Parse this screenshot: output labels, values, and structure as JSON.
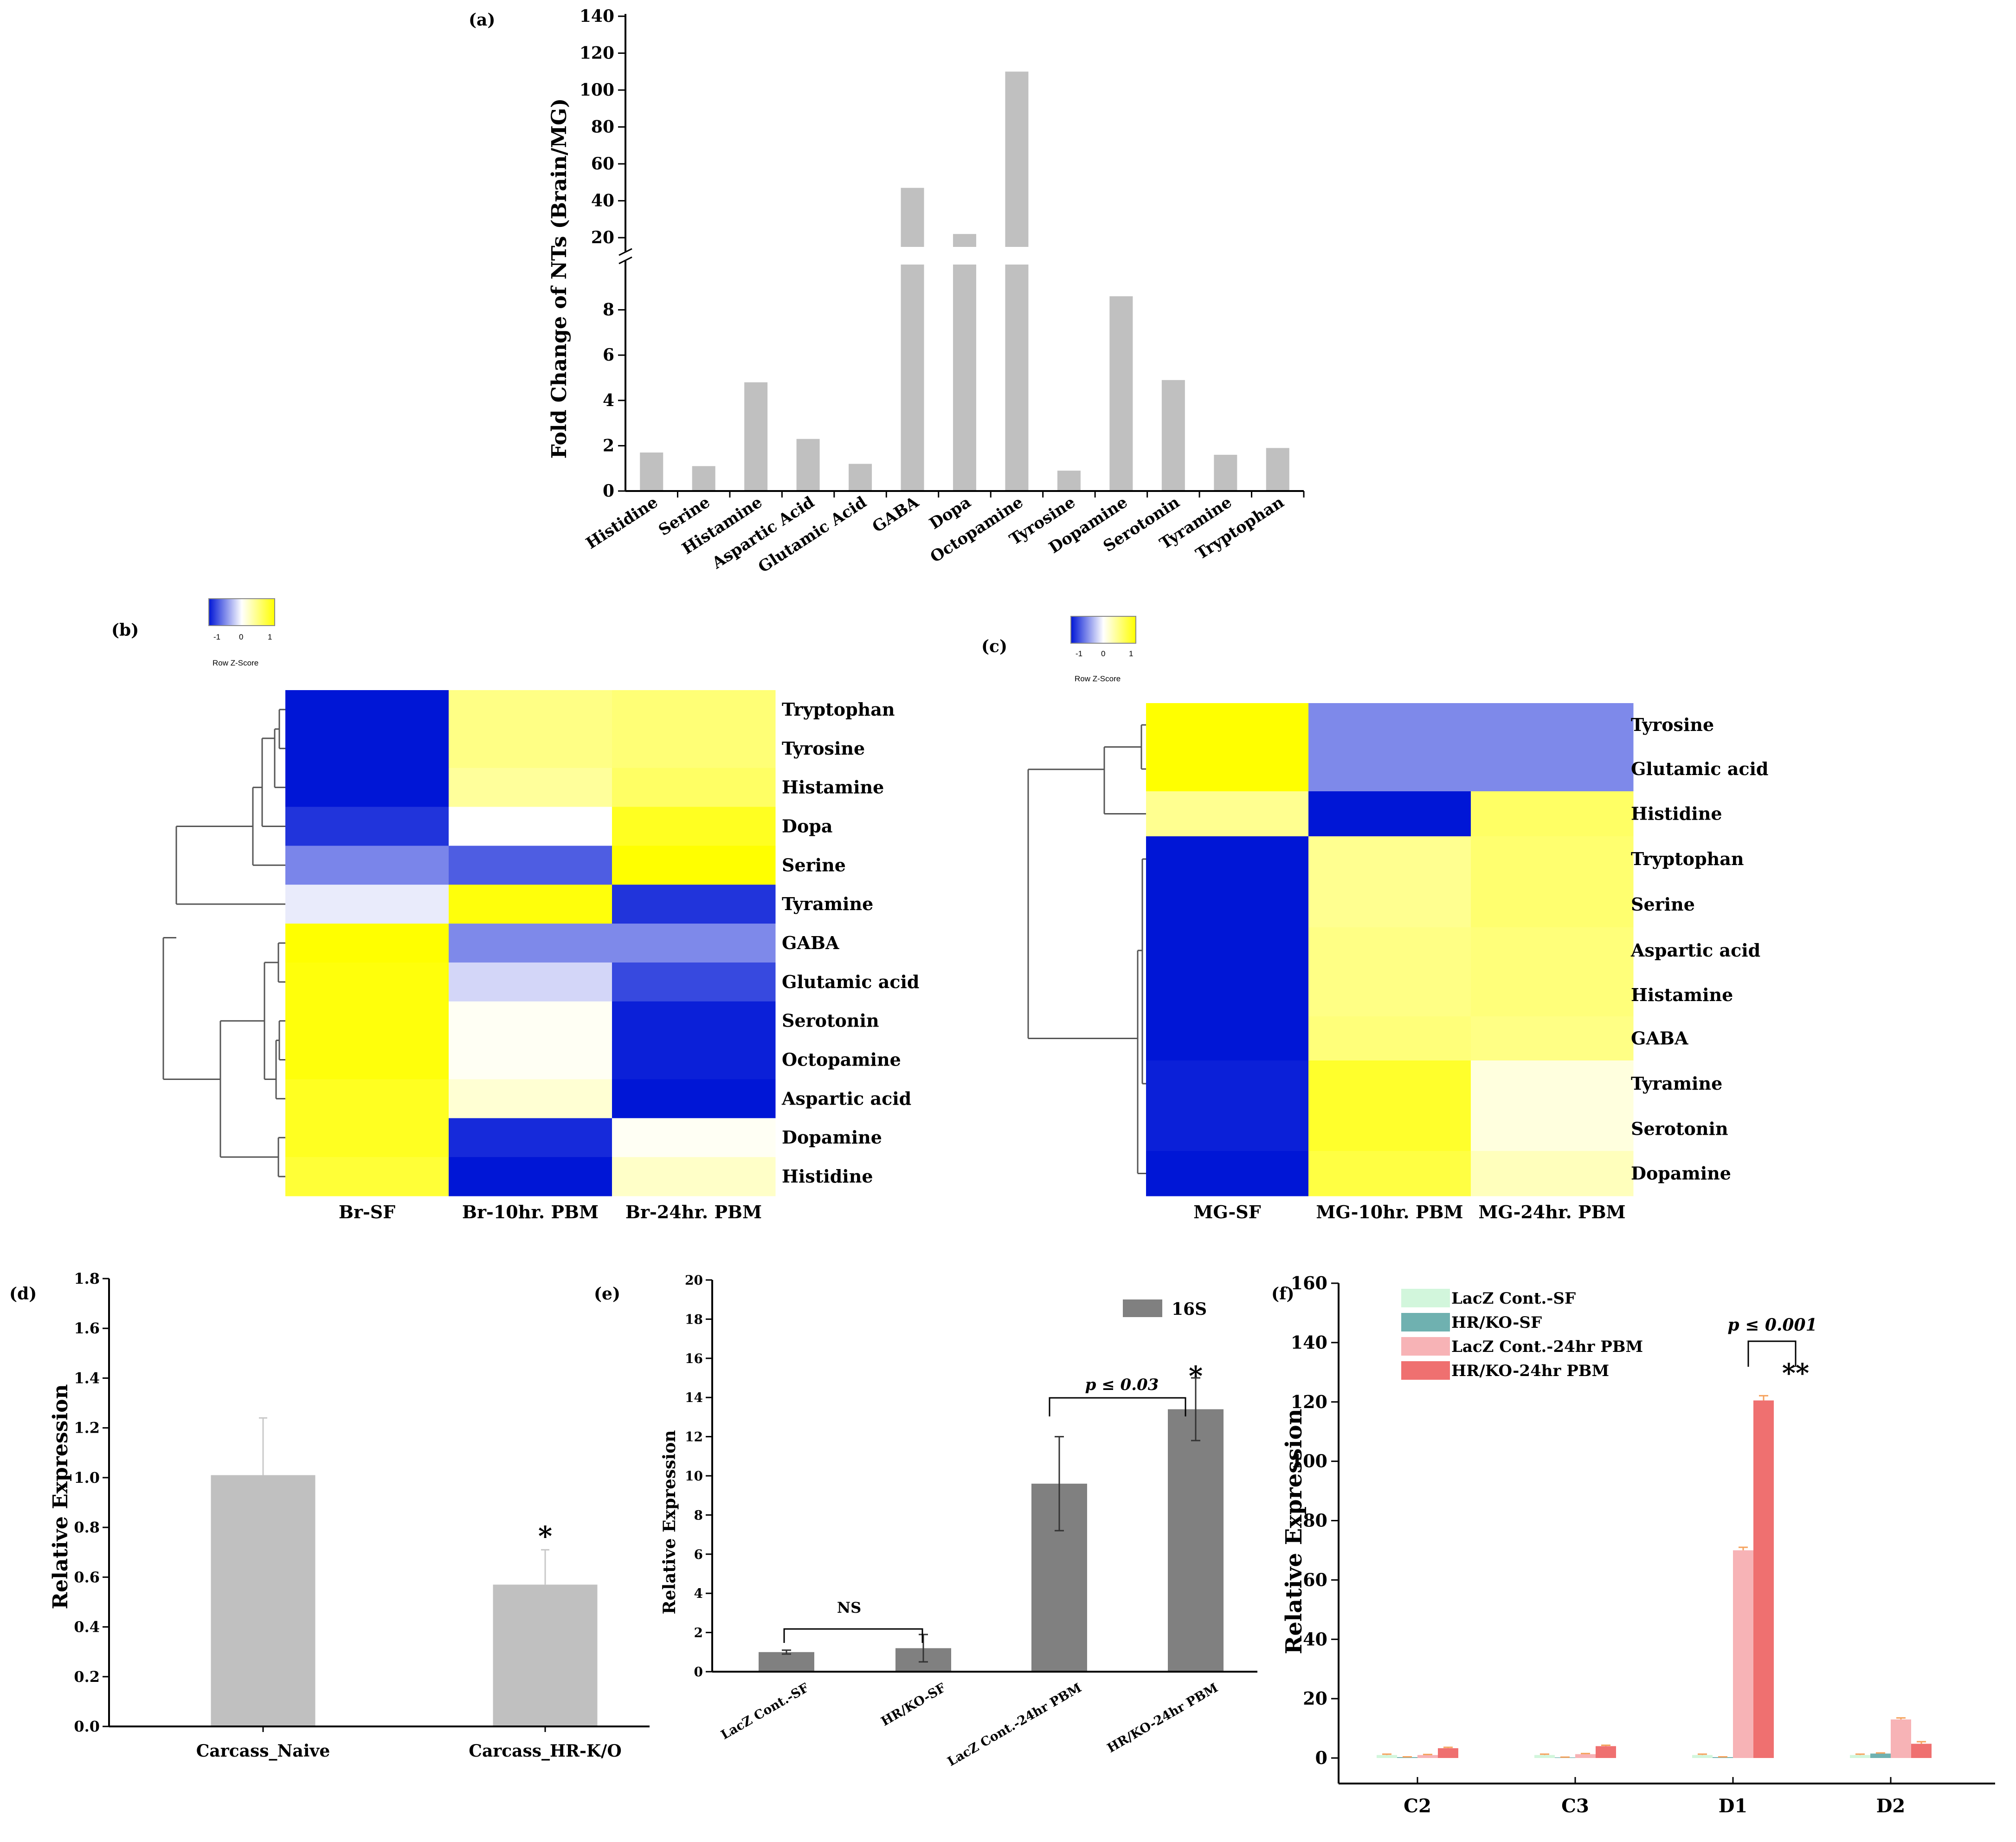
{
  "colors": {
    "bar_gray": "#c0c0c0",
    "bar_dark": "#808080",
    "heat_low": "#0016d6",
    "heat_mid": "#ffffff",
    "heat_high": "#ffff00",
    "lacz_sf": "#d2f6dc",
    "hr_sf": "#6fb1b0",
    "lacz_pbm": "#f7b3b6",
    "hr_pbm": "#ef7070",
    "err_orange": "#f5a25d"
  },
  "chart_data": [
    {
      "panel": "(a)",
      "type": "bar",
      "ylabel": "Fold Change of NTs (Brain/MG)",
      "categories": [
        "Histidine",
        "Serine",
        "Histamine",
        "Aspartic Acid",
        "Glutamic Acid",
        "GABA",
        "Dopa",
        "Octopamine",
        "Tyrosine",
        "Dopamine",
        "Serotonin",
        "Tyramine",
        "Tryptophan"
      ],
      "values": [
        1.7,
        1.1,
        4.8,
        2.3,
        1.2,
        47,
        22,
        110,
        0.9,
        8.6,
        4.9,
        1.6,
        1.9
      ],
      "axis_break": true,
      "lower_ticks": [
        0,
        2,
        4,
        6,
        8
      ],
      "upper_ticks": [
        20,
        40,
        60,
        80,
        100,
        120,
        140
      ],
      "ylim_lower": [
        0,
        10
      ],
      "ylim_upper": [
        15,
        140
      ]
    },
    {
      "panel": "(b)",
      "type": "heatmap",
      "legend_title": "Row Z-Score",
      "legend_ticks": [
        "-1",
        "0",
        "1"
      ],
      "columns": [
        "Br-SF",
        "Br-10hr. PBM",
        "Br-24hr. PBM"
      ],
      "rows": [
        "Tryptophan",
        "Tyrosine",
        "Histamine",
        "Dopa",
        "Serine",
        "Tyramine",
        "GABA",
        "Glutamic acid",
        "Serotonin",
        "Octopamine",
        "Aspartic acid",
        "Dopamine",
        "Histidine"
      ],
      "values": [
        [
          -1.15,
          0.55,
          0.62
        ],
        [
          -1.15,
          0.55,
          0.62
        ],
        [
          -1.15,
          0.45,
          0.7
        ],
        [
          -1.0,
          0.0,
          1.0
        ],
        [
          -0.6,
          -0.8,
          1.4
        ],
        [
          -0.1,
          1.1,
          -1.0
        ],
        [
          1.15,
          -0.58,
          -0.58
        ],
        [
          1.1,
          -0.2,
          -0.9
        ],
        [
          1.1,
          0.05,
          -1.1
        ],
        [
          1.1,
          0.05,
          -1.1
        ],
        [
          1.0,
          0.2,
          -1.2
        ],
        [
          1.0,
          -1.05,
          0.05
        ],
        [
          0.9,
          -1.15,
          0.25
        ]
      ]
    },
    {
      "panel": "(c)",
      "type": "heatmap",
      "legend_title": "Row Z-Score",
      "legend_ticks": [
        "-1",
        "0",
        "1"
      ],
      "columns": [
        "MG-SF",
        "MG-10hr. PBM",
        "MG-24hr. PBM"
      ],
      "rows": [
        "Tyrosine",
        "Glutamic acid",
        "Histidine",
        "Tryptophan",
        "Serine",
        "Aspartic acid",
        "Histamine",
        "GABA",
        "Tyramine",
        "Serotonin",
        "Dopamine"
      ],
      "values": [
        [
          1.15,
          -0.58,
          -0.58
        ],
        [
          1.15,
          -0.58,
          -0.58
        ],
        [
          0.5,
          -1.15,
          0.7
        ],
        [
          -1.15,
          0.5,
          0.65
        ],
        [
          -1.15,
          0.5,
          0.65
        ],
        [
          -1.15,
          0.55,
          0.6
        ],
        [
          -1.15,
          0.55,
          0.6
        ],
        [
          -1.15,
          0.6,
          0.55
        ],
        [
          -1.1,
          0.95,
          0.15
        ],
        [
          -1.1,
          0.95,
          0.15
        ],
        [
          -1.15,
          0.85,
          0.3
        ]
      ]
    },
    {
      "panel": "(d)",
      "type": "bar",
      "ylabel": "Relative Expression",
      "categories": [
        "Carcass_Naive",
        "Carcass_HR-K/O"
      ],
      "values": [
        1.01,
        0.57
      ],
      "errors": [
        0.23,
        0.14
      ],
      "ylim": [
        0,
        1.8
      ],
      "ticks": [
        "0.0",
        "0.2",
        "0.4",
        "0.6",
        "0.8",
        "1.0",
        "1.2",
        "1.4",
        "1.6",
        "1.8"
      ],
      "annotations": [
        "*"
      ]
    },
    {
      "panel": "(e)",
      "type": "bar",
      "ylabel": "Relative Expression",
      "legend": [
        "16S"
      ],
      "categories": [
        "LacZ Cont.-SF",
        "HR/KO-SF",
        "LacZ Cont.-24hr PBM",
        "HR/KO-24hr PBM"
      ],
      "values": [
        1.0,
        1.2,
        9.6,
        13.4
      ],
      "errors": [
        0.1,
        0.7,
        2.4,
        1.6
      ],
      "ylim": [
        0,
        20
      ],
      "ticks": [
        "0",
        "2",
        "4",
        "6",
        "8",
        "10",
        "12",
        "14",
        "16",
        "18",
        "20"
      ],
      "annotations": [
        "NS",
        "p ≤ 0.03",
        "*"
      ]
    },
    {
      "panel": "(f)",
      "type": "bar",
      "ylabel": "Relative Expression",
      "categories": [
        "C2",
        "C3",
        "D1",
        "D2"
      ],
      "series": [
        {
          "name": "LacZ Cont.-SF",
          "values": [
            1.0,
            1.0,
            1.0,
            1.0
          ],
          "errors": [
            0.3,
            0.3,
            0.3,
            0.3
          ]
        },
        {
          "name": "HR/KO-SF",
          "values": [
            0.3,
            0.2,
            0.3,
            1.5
          ],
          "errors": [
            0.1,
            0.1,
            0.1,
            0.2
          ]
        },
        {
          "name": "LacZ Cont.-24hr PBM",
          "values": [
            1.0,
            1.3,
            70.0,
            13.0
          ],
          "errors": [
            0.2,
            0.2,
            1.0,
            0.5
          ]
        },
        {
          "name": "HR/KO-24hr PBM",
          "values": [
            3.3,
            4.0,
            120.5,
            4.8
          ],
          "errors": [
            0.3,
            0.3,
            1.6,
            0.7
          ]
        }
      ],
      "ylim": [
        0,
        160
      ],
      "ticks": [
        "0",
        "20",
        "40",
        "60",
        "80",
        "100",
        "120",
        "140",
        "160"
      ],
      "annotations": [
        "p ≤ 0.001",
        "**"
      ]
    }
  ]
}
